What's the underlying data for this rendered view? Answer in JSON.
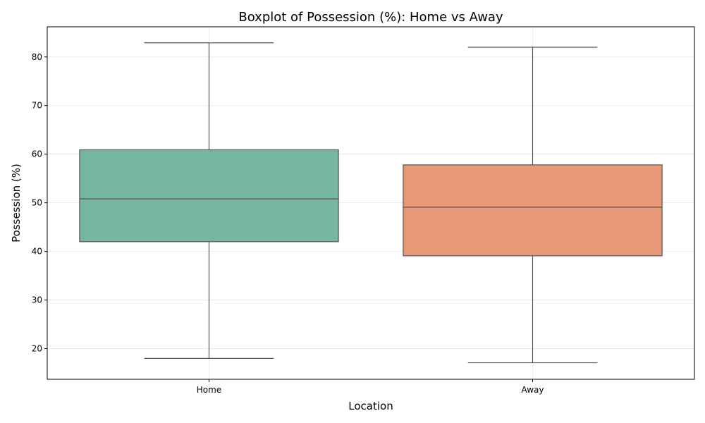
{
  "chart_data": {
    "type": "boxplot",
    "title": "Boxplot of Possession (%): Home vs Away",
    "xlabel": "Location",
    "ylabel": "Possession (%)",
    "ylim": [
      13.7,
      86.2
    ],
    "yticks": [
      20,
      30,
      40,
      50,
      60,
      70,
      80
    ],
    "grid": true,
    "categories": [
      "Home",
      "Away"
    ],
    "boxes": [
      {
        "category": "Home",
        "min": 18.0,
        "q1": 42.0,
        "median": 50.8,
        "q3": 60.9,
        "max": 82.9,
        "color": "#74b6a2"
      },
      {
        "category": "Away",
        "min": 17.1,
        "q1": 39.1,
        "median": 49.1,
        "q3": 57.8,
        "max": 82.0,
        "color": "#e99877"
      }
    ]
  }
}
